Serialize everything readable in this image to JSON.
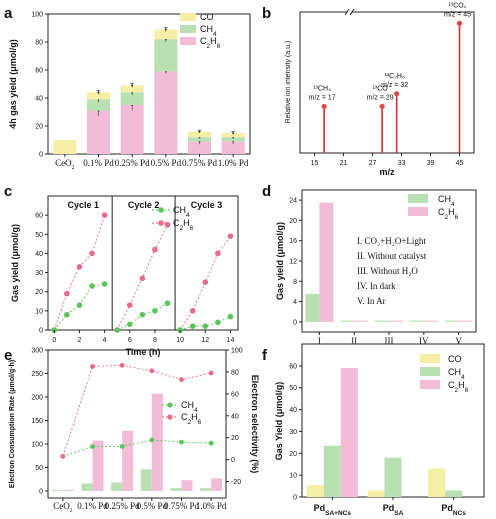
{
  "colors": {
    "CO": "#f5efa5",
    "CH4": "#b8e0b2",
    "C2H6": "#f3bcd6",
    "ms_line": "#d62d2d",
    "ms_dot": "#e04848",
    "ch4_point": "#5bc45b",
    "c2h6_point": "#e96a8b"
  },
  "panels": {
    "a": {
      "label": "a"
    },
    "b": {
      "label": "b"
    },
    "c": {
      "label": "c"
    },
    "d": {
      "label": "d"
    },
    "e": {
      "label": "e"
    },
    "f": {
      "label": "f"
    }
  },
  "chart_data": [
    {
      "panel": "a",
      "type": "bar",
      "stacked": true,
      "ylabel": "4h gas yield (μmol/g)",
      "ylim": [
        0,
        100
      ],
      "yticks": [
        0,
        20,
        40,
        60,
        80,
        100
      ],
      "categories": [
        "CeO2",
        "0.1% Pd",
        "0.25% Pd",
        "0.5% Pd",
        "0.75% Pd",
        "1.0% Pd"
      ],
      "category_sub": [
        "2",
        "",
        "",
        "",
        "",
        ""
      ],
      "series": [
        {
          "name": "C2H6",
          "display": "C2H6",
          "values": [
            0,
            31,
            35,
            59,
            9,
            9
          ],
          "errors": [
            0,
            4,
            4,
            1.5,
            2,
            2
          ]
        },
        {
          "name": "CH4",
          "display": "CH4",
          "values": [
            0,
            8,
            9,
            23,
            3,
            3
          ],
          "errors": [
            0,
            2,
            2,
            2,
            1,
            1
          ]
        },
        {
          "name": "CO",
          "display": "CO",
          "values": [
            10,
            5,
            5,
            7,
            4,
            3
          ],
          "errors": [
            0,
            1.5,
            1.5,
            1.5,
            1,
            1
          ]
        }
      ],
      "legend": [
        {
          "main": "CO",
          "sub": "",
          "color_key": "CO"
        },
        {
          "main": "CH",
          "sub": "4",
          "color_key": "CH4"
        },
        {
          "main": "C",
          "sub": "2",
          "main2": "H",
          "sub2": "6",
          "color_key": "C2H6"
        }
      ]
    },
    {
      "panel": "b",
      "type": "bar",
      "xlabel": "m/z",
      "ylabel": "Relative ion intensity (a.u.)",
      "xlim": [
        12,
        48
      ],
      "xticks": [
        15,
        21,
        27,
        33,
        39,
        45
      ],
      "peaks": [
        {
          "x": 17,
          "y": 0.33,
          "label_top": "¹³CH₄",
          "label_bottom": "m/z = 17"
        },
        {
          "x": 29,
          "y": 0.33,
          "label_top": "¹³CO",
          "label_bottom": "m/z = 29"
        },
        {
          "x": 32,
          "y": 0.42,
          "label_top": "¹³C₂H₆",
          "label_bottom": "m/z = 32"
        },
        {
          "x": 45,
          "y": 0.92,
          "label_top": "¹³CO₂",
          "label_bottom": "m/z = 45"
        }
      ]
    },
    {
      "panel": "c",
      "type": "line",
      "xlabel": "Time (h)",
      "ylabel": "Gas yield (μmol/g)",
      "ylim": [
        0,
        70
      ],
      "yticks": [
        0,
        10,
        20,
        30,
        40,
        50,
        60
      ],
      "xticks": [
        0,
        2,
        4,
        6,
        8,
        10,
        12,
        14
      ],
      "cycles": [
        {
          "name": "Cycle 1",
          "range": [
            0,
            4.6
          ],
          "CH4": [
            [
              0,
              0
            ],
            [
              1,
              8
            ],
            [
              2,
              13
            ],
            [
              3,
              23
            ],
            [
              4,
              24
            ]
          ],
          "C2H6": [
            [
              0,
              0
            ],
            [
              1,
              19
            ],
            [
              2,
              33
            ],
            [
              3,
              40
            ],
            [
              4,
              60
            ]
          ]
        },
        {
          "name": "Cycle 2",
          "range": [
            4.6,
            9.6
          ],
          "CH4": [
            [
              5,
              0
            ],
            [
              6,
              3
            ],
            [
              7,
              8
            ],
            [
              8,
              10
            ],
            [
              9,
              14
            ]
          ],
          "C2H6": [
            [
              5,
              0
            ],
            [
              6,
              13
            ],
            [
              7,
              27
            ],
            [
              8,
              42
            ],
            [
              9,
              55
            ]
          ]
        },
        {
          "name": "Cycle 3",
          "range": [
            9.6,
            14.6
          ],
          "CH4": [
            [
              10,
              0
            ],
            [
              11,
              2
            ],
            [
              12,
              2
            ],
            [
              13,
              4
            ],
            [
              14,
              7
            ]
          ],
          "C2H6": [
            [
              10,
              0
            ],
            [
              11,
              10
            ],
            [
              12,
              25
            ],
            [
              13,
              40
            ],
            [
              14,
              49
            ]
          ]
        }
      ],
      "legend": [
        {
          "main": "CH",
          "sub": "4",
          "color_key": "ch4_point"
        },
        {
          "main": "C",
          "sub": "2",
          "main2": "H",
          "sub2": "6",
          "color_key": "c2h6_point"
        }
      ]
    },
    {
      "panel": "d",
      "type": "bar",
      "ylabel": "Gas yield (μmol/g)",
      "ylim": [
        -2,
        26
      ],
      "yticks": [
        0,
        4,
        8,
        12,
        16,
        20,
        24
      ],
      "categories": [
        "I",
        "II",
        "III",
        "IV",
        "V"
      ],
      "series": [
        {
          "name": "CH4",
          "values": [
            5.5,
            0,
            0,
            0,
            0
          ]
        },
        {
          "name": "C2H6",
          "values": [
            23.5,
            0,
            0,
            0,
            0
          ]
        }
      ],
      "legend": [
        {
          "main": "CH",
          "sub": "4",
          "color_key": "CH4"
        },
        {
          "main": "C",
          "sub": "2",
          "main2": "H",
          "sub2": "6",
          "color_key": "C2H6"
        }
      ],
      "annotations": [
        "I. CO₂+H₂O+Light",
        "II. Without catalyst",
        "III. Without H₂O",
        "IV. In dark",
        "V. In Ar"
      ]
    },
    {
      "panel": "e",
      "type": "bar+line",
      "ylabel": "Electron Consumption Rate (μmol/g·h)",
      "y2label": "Electron selectivity (%)",
      "ylim": [
        -15,
        300
      ],
      "yticks": [
        0,
        50,
        100,
        150,
        200,
        250,
        300
      ],
      "y2lim": [
        -35,
        100
      ],
      "y2ticks": [
        -20,
        0,
        20,
        40,
        60,
        80,
        100
      ],
      "categories": [
        "CeO2",
        "0.1% Pd",
        "0.25% Pd",
        "0.5% Pd",
        "0.75% Pd",
        "1.0% Pd"
      ],
      "category_sub": [
        "2",
        "",
        "",
        "",
        "",
        ""
      ],
      "series": [
        {
          "name": "CH4",
          "values": [
            0,
            16,
            18,
            46,
            6,
            6
          ]
        },
        {
          "name": "C2H6",
          "values": [
            0,
            107,
            128,
            207,
            23,
            27
          ]
        }
      ],
      "lines": [
        {
          "name": "CH4",
          "values": [
            3,
            12,
            12,
            18,
            16,
            15
          ]
        },
        {
          "name": "C2H6",
          "values": [
            3,
            85,
            86,
            81,
            73,
            79
          ]
        }
      ],
      "legend": [
        {
          "main": "CH",
          "sub": "4",
          "color_key": "ch4_point"
        },
        {
          "main": "C",
          "sub": "2",
          "main2": "H",
          "sub2": "6",
          "color_key": "c2h6_point"
        }
      ]
    },
    {
      "panel": "f",
      "type": "bar",
      "ylabel": "Gas Yield (μmol/g)",
      "ylim": [
        0,
        70
      ],
      "yticks": [
        0,
        10,
        20,
        30,
        40,
        50,
        60
      ],
      "categories": [
        "PdSA+NCs",
        "PdSA",
        "PdNCs"
      ],
      "category_main": [
        "Pd",
        "Pd",
        "Pd"
      ],
      "category_sub": [
        "SA+NCs",
        "SA",
        "NCs"
      ],
      "series": [
        {
          "name": "CO",
          "values": [
            5.5,
            3,
            13
          ]
        },
        {
          "name": "CH4",
          "values": [
            23.5,
            18,
            3
          ]
        },
        {
          "name": "C2H6",
          "values": [
            59,
            0,
            0
          ]
        }
      ],
      "legend": [
        {
          "main": "CO",
          "sub": "",
          "color_key": "CO"
        },
        {
          "main": "CH",
          "sub": "4",
          "color_key": "CH4"
        },
        {
          "main": "C",
          "sub": "2",
          "main2": "H",
          "sub2": "6",
          "color_key": "C2H6"
        }
      ]
    }
  ]
}
